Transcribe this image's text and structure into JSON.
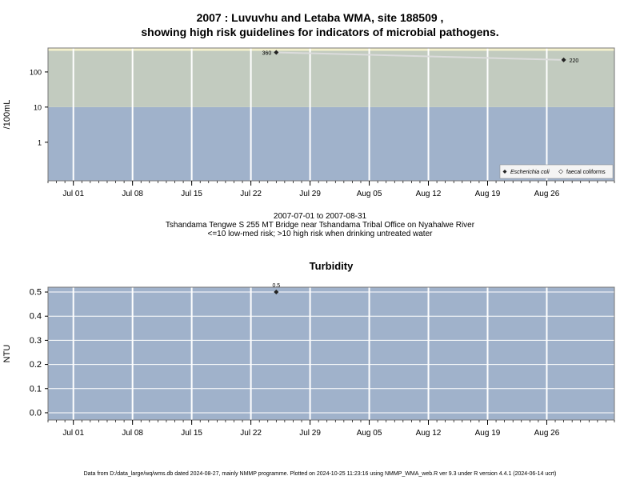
{
  "figure": {
    "title_line1": "2007 : Luvuvhu and Letaba WMA, site 188509 ,",
    "title_line2": "showing high risk guidelines for indicators of microbial pathogens.",
    "date_range": "2007-07-01 to 2007-08-31",
    "site_desc": "Tshandama Tengwe S 255 MT Bridge near Tshandama Tribal Office on Nyahalwe River",
    "risk_note": "<=10 low-med risk; >10 high risk when drinking untreated water",
    "footer": "Data from D:/data_large/wq/wms.db dated 2024-08-27, mainly NMMP programme. Plotted on 2024-10-25 11:23:16 using NMMP_WMA_web.R ver 9.3 under R version 4.4.1 (2024-06-14 ucrt)"
  },
  "colors": {
    "low_band": "#a0b2cb",
    "high_band": "#c2cbbf",
    "top_band": "#f4f0cc",
    "grid": "#ffffff",
    "line": "#dcdcdc",
    "point": "#222222"
  },
  "chart_data": [
    {
      "type": "scatter",
      "title": "",
      "xlabel": "",
      "ylabel": "/100mL",
      "y_scale": "log",
      "ylim": [
        0.08,
        480
      ],
      "xlim": [
        "2007-06-28",
        "2007-09-03"
      ],
      "x_ticks": [
        "Jul 01",
        "Jul 08",
        "Jul 15",
        "Jul 22",
        "Jul 29",
        "Aug 05",
        "Aug 12",
        "Aug 19",
        "Aug 26"
      ],
      "x_tick_dates": [
        "2007-07-01",
        "2007-07-08",
        "2007-07-15",
        "2007-07-22",
        "2007-07-29",
        "2007-08-05",
        "2007-08-12",
        "2007-08-19",
        "2007-08-26"
      ],
      "y_ticks": [
        {
          "value": 1,
          "label": "1"
        },
        {
          "value": 10,
          "label": "10"
        },
        {
          "value": 100,
          "label": "100"
        }
      ],
      "bands": [
        {
          "from": 0.08,
          "to": 10,
          "color": "#a0b2cb"
        },
        {
          "from": 10,
          "to": 400,
          "color": "#c2cbbf"
        },
        {
          "from": 400,
          "to": 480,
          "color": "#f4f0cc"
        }
      ],
      "series": [
        {
          "name": "Escherichia coli",
          "points": [
            {
              "x": "2007-07-25",
              "y": 360,
              "label": "360"
            },
            {
              "x": "2007-08-28",
              "y": 220,
              "label": "220"
            }
          ]
        }
      ],
      "legend": {
        "position": "bottom-right",
        "entries": [
          "Escherichia coli",
          "faecal coliforms"
        ]
      },
      "grid": true
    },
    {
      "type": "scatter",
      "title": "Turbidity",
      "xlabel": "",
      "ylabel": "NTU",
      "ylim": [
        -0.03,
        0.52
      ],
      "xlim": [
        "2007-06-28",
        "2007-09-03"
      ],
      "x_ticks": [
        "Jul 01",
        "Jul 08",
        "Jul 15",
        "Jul 22",
        "Jul 29",
        "Aug 05",
        "Aug 12",
        "Aug 19",
        "Aug 26"
      ],
      "x_tick_dates": [
        "2007-07-01",
        "2007-07-08",
        "2007-07-15",
        "2007-07-22",
        "2007-07-29",
        "2007-08-05",
        "2007-08-12",
        "2007-08-19",
        "2007-08-26"
      ],
      "y_ticks": [
        {
          "value": 0.0,
          "label": "0.0"
        },
        {
          "value": 0.1,
          "label": "0.1"
        },
        {
          "value": 0.2,
          "label": "0.2"
        },
        {
          "value": 0.3,
          "label": "0.3"
        },
        {
          "value": 0.4,
          "label": "0.4"
        },
        {
          "value": 0.5,
          "label": "0.5"
        }
      ],
      "series": [
        {
          "points": [
            {
              "x": "2007-07-25",
              "y": 0.5,
              "label": "0.5"
            }
          ]
        }
      ],
      "grid": true
    }
  ]
}
